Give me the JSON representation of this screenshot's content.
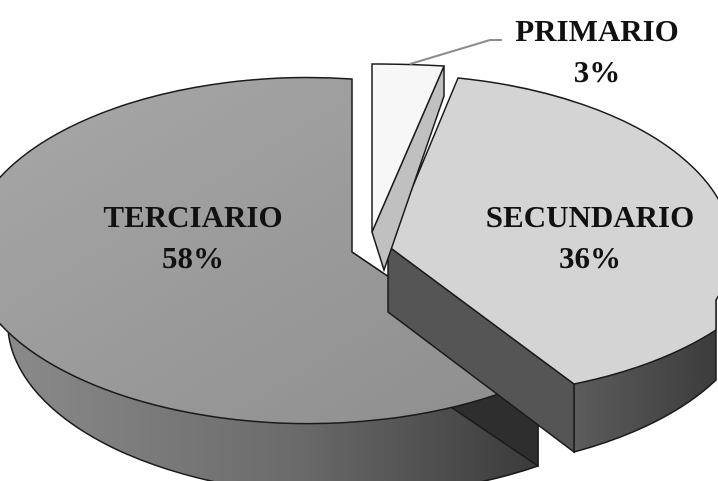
{
  "chart_data": {
    "type": "pie",
    "style": "3d-exploded",
    "title": "",
    "categories": [
      "TERCIARIO",
      "SECUNDARIO",
      "PRIMARIO"
    ],
    "values": [
      58,
      36,
      3
    ],
    "value_labels": [
      "58%",
      "36%",
      "3%"
    ],
    "colors": [
      "#9a9a9a",
      "#d4d4d4",
      "#f7f7f7"
    ],
    "legend": "none"
  }
}
